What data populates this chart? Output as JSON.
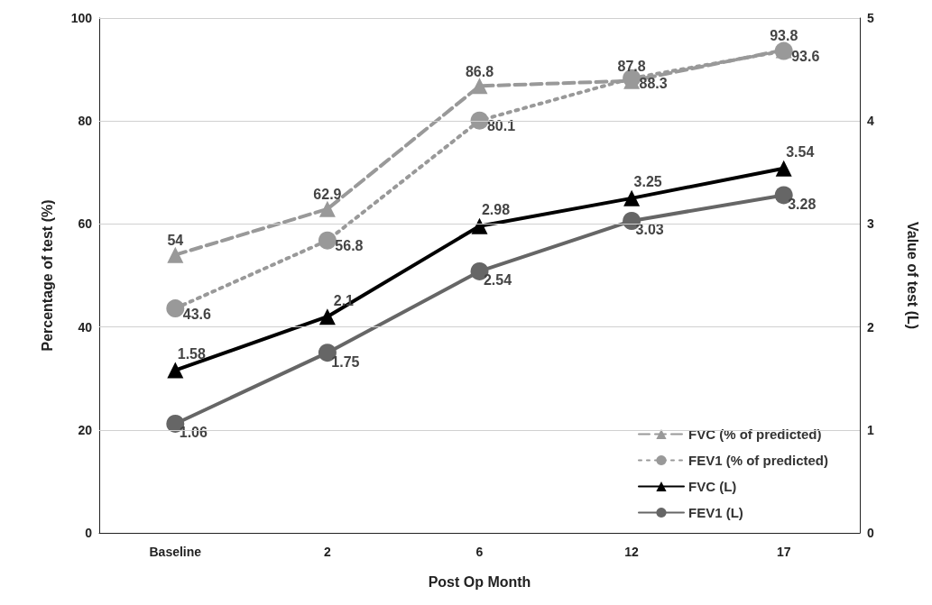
{
  "chart_data": {
    "type": "line",
    "xlabel": "Post Op Month",
    "ylabel": "Percentage of test (%)",
    "y2label": "Value of test (L)",
    "categories": [
      "Baseline",
      "2",
      "6",
      "12",
      "17"
    ],
    "series": [
      {
        "name": "FVC (% of predicted)",
        "color": "#999999",
        "values": [
          54,
          62.9,
          86.8,
          87.8,
          93.8
        ],
        "marker": "triangle",
        "line_style": "dashed"
      },
      {
        "name": "FEV1 (% of predicted)",
        "color": "#999999",
        "values": [
          43.6,
          56.8,
          80.1,
          88.3,
          93.6
        ],
        "marker": "circle",
        "line_style": "dotted"
      },
      {
        "name": "FVC (L)",
        "color": "#000000",
        "values": [
          1.58,
          2.1,
          2.98,
          3.25,
          3.54
        ],
        "marker": "triangle",
        "line_style": "solid",
        "axis": "y2"
      },
      {
        "name": "FEV1 (L)",
        "color": "#666666",
        "values": [
          1.06,
          1.75,
          2.54,
          3.03,
          3.28
        ],
        "marker": "circle",
        "line_style": "solid",
        "axis": "y2"
      }
    ],
    "ylim": [
      0,
      100
    ],
    "yticks": [
      0,
      20,
      40,
      60,
      80,
      100
    ],
    "y2lim": [
      0,
      5
    ],
    "y2ticks": [
      0,
      1,
      2,
      3,
      4,
      5
    ],
    "grid": "y",
    "legend": "bottom right",
    "data_labels": true
  }
}
